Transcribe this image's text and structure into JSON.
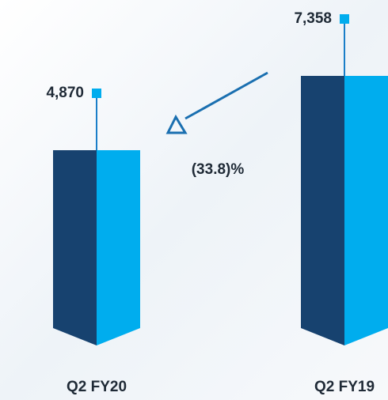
{
  "chart_data": {
    "type": "bar",
    "categories": [
      "Q2 FY20",
      "Q2 FY19"
    ],
    "values": [
      4870,
      7358
    ],
    "value_labels": [
      "4,870",
      "7,358"
    ],
    "annotation": "(33.8)%",
    "colors": {
      "dark": "#17426f",
      "light": "#00adee",
      "stem": "#1a7ec8"
    }
  }
}
